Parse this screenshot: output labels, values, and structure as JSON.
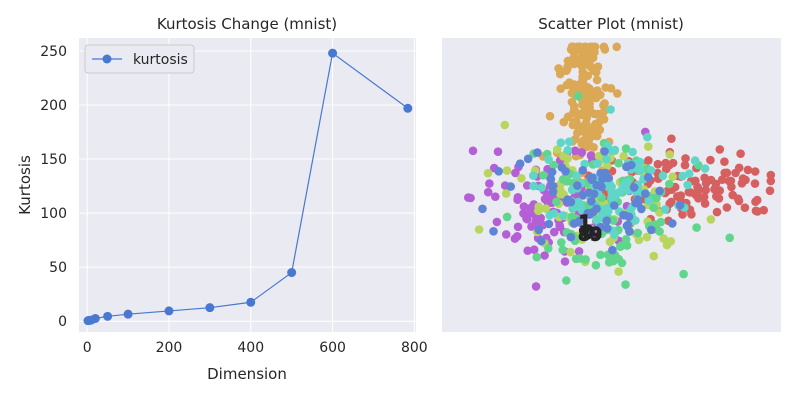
{
  "chart_data": [
    {
      "type": "line",
      "title": "Kurtosis Change (mnist)",
      "xlabel": "Dimension",
      "ylabel": "Kurtosis",
      "xlim": [
        -20,
        804
      ],
      "ylim": [
        -10,
        262
      ],
      "xticks": [
        "0",
        "200",
        "400",
        "600",
        "800"
      ],
      "yticks": [
        "0",
        "50",
        "100",
        "150",
        "200",
        "250"
      ],
      "grid": true,
      "legend": "top-left",
      "series": [
        {
          "name": "kurtosis",
          "color": "#4878d0",
          "x": [
            2,
            5,
            10,
            20,
            50,
            100,
            200,
            300,
            400,
            500,
            600,
            784
          ],
          "y": [
            0.5,
            0.7,
            1.0,
            2.5,
            4.5,
            6.5,
            9.5,
            12.5,
            17.5,
            45,
            248,
            197
          ]
        }
      ]
    },
    {
      "type": "scatter",
      "title": "Scatter Plot (mnist)",
      "xlabel": "",
      "ylabel": "",
      "ticks": false,
      "grid": false,
      "center_labels": [
        "1",
        "0",
        "8",
        "9"
      ],
      "classes": [
        {
          "color": "#d65f5f",
          "center": [
            0.72,
            0.5
          ],
          "spread": [
            0.14,
            0.06
          ],
          "count": 120
        },
        {
          "color": "#dba856",
          "center": [
            0.42,
            0.23
          ],
          "spread": [
            0.035,
            0.15
          ],
          "count": 170
        },
        {
          "color": "#b45fd6",
          "center": [
            0.33,
            0.55
          ],
          "spread": [
            0.12,
            0.09
          ],
          "count": 110
        },
        {
          "color": "#b8d65f",
          "center": [
            0.48,
            0.55
          ],
          "spread": [
            0.13,
            0.1
          ],
          "count": 90
        },
        {
          "color": "#5fd68c",
          "center": [
            0.47,
            0.6
          ],
          "spread": [
            0.12,
            0.1
          ],
          "count": 100
        },
        {
          "color": "#5fd6c8",
          "center": [
            0.52,
            0.5
          ],
          "spread": [
            0.12,
            0.09
          ],
          "count": 90
        },
        {
          "color": "#5f84d6",
          "center": [
            0.44,
            0.56
          ],
          "spread": [
            0.11,
            0.09
          ],
          "count": 70
        }
      ]
    }
  ]
}
